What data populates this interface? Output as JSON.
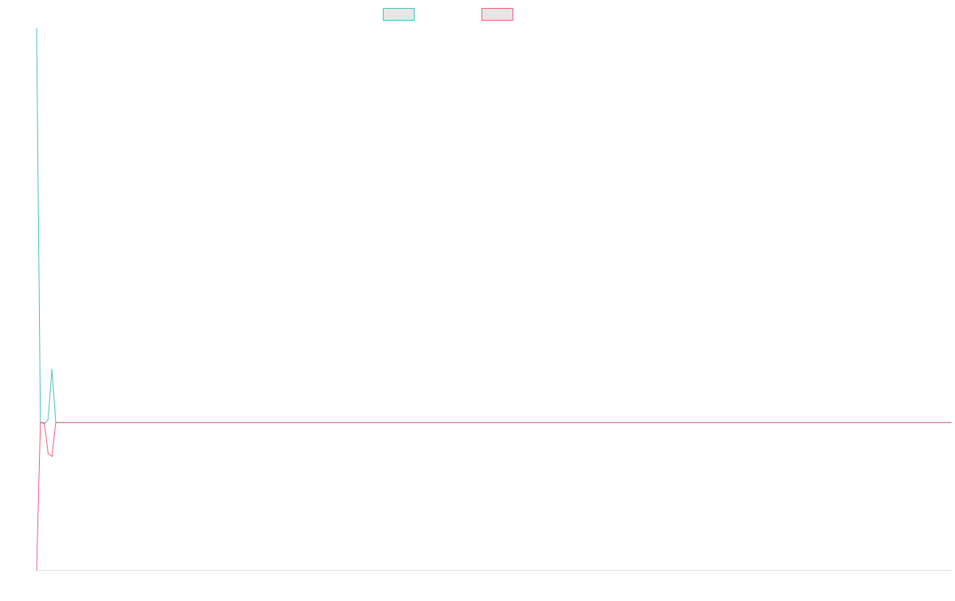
{
  "chart_data": {
    "type": "line",
    "title": "",
    "xlabel": "",
    "ylabel": "",
    "legend_position": "top-center",
    "grid": false,
    "axis_color": "#dddddd",
    "x_count": 240,
    "y_range": [
      -1.0,
      2.67
    ],
    "series": [
      {
        "color": "#4bbfc0",
        "legend_fill": "#e6e6e6",
        "points": [
          [
            0,
            2.67
          ],
          [
            1,
            0.0
          ],
          [
            2,
            -0.01
          ],
          [
            3,
            0.02
          ],
          [
            4,
            0.36
          ],
          [
            5,
            0.0
          ],
          [
            16,
            0.0
          ],
          [
            54,
            0.0
          ],
          [
            239,
            0.0
          ]
        ]
      },
      {
        "color": "#f0607f",
        "legend_fill": "#e6e6e6",
        "points": [
          [
            0,
            -1.0
          ],
          [
            1,
            0.0
          ],
          [
            2,
            0.0
          ],
          [
            3,
            -0.21
          ],
          [
            4,
            -0.23
          ],
          [
            5,
            0.0
          ],
          [
            239,
            0.0
          ]
        ]
      }
    ]
  }
}
